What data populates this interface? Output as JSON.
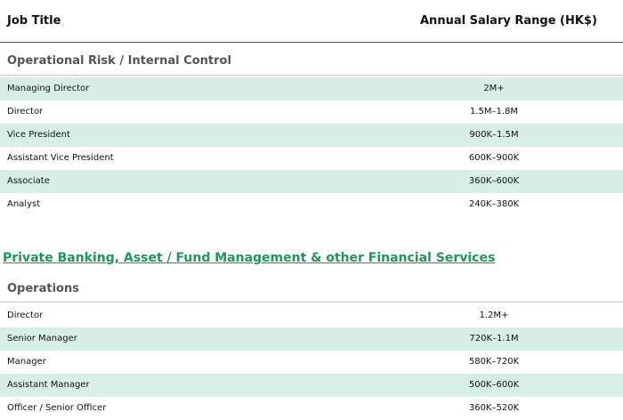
{
  "header": {
    "job_title": "Job Title",
    "salary": "Annual Salary Range (HK$)"
  },
  "section1": {
    "label": "Operational Risk / Internal Control",
    "rows": [
      {
        "title": "Managing Director",
        "salary": "2M+"
      },
      {
        "title": "Director",
        "salary": "1.5M–1.8M"
      },
      {
        "title": "Vice President",
        "salary": "900K–1.5M"
      },
      {
        "title": "Assistant Vice President",
        "salary": "600K–900K"
      },
      {
        "title": "Associate",
        "salary": "360K–600K"
      },
      {
        "title": "Analyst",
        "salary": "240K–380K"
      }
    ]
  },
  "category_link": "Private Banking, Asset / Fund Management & other Financial Services",
  "section2": {
    "label": "Operations",
    "rows": [
      {
        "title": "Director",
        "salary": "1.2M+"
      },
      {
        "title": "Senior Manager",
        "salary": "720K–1.1M"
      },
      {
        "title": "Manager",
        "salary": "580K–720K"
      },
      {
        "title": "Assistant Manager",
        "salary": "500K–600K"
      },
      {
        "title": "Officer / Senior Officer",
        "salary": "360K–520K"
      }
    ]
  }
}
